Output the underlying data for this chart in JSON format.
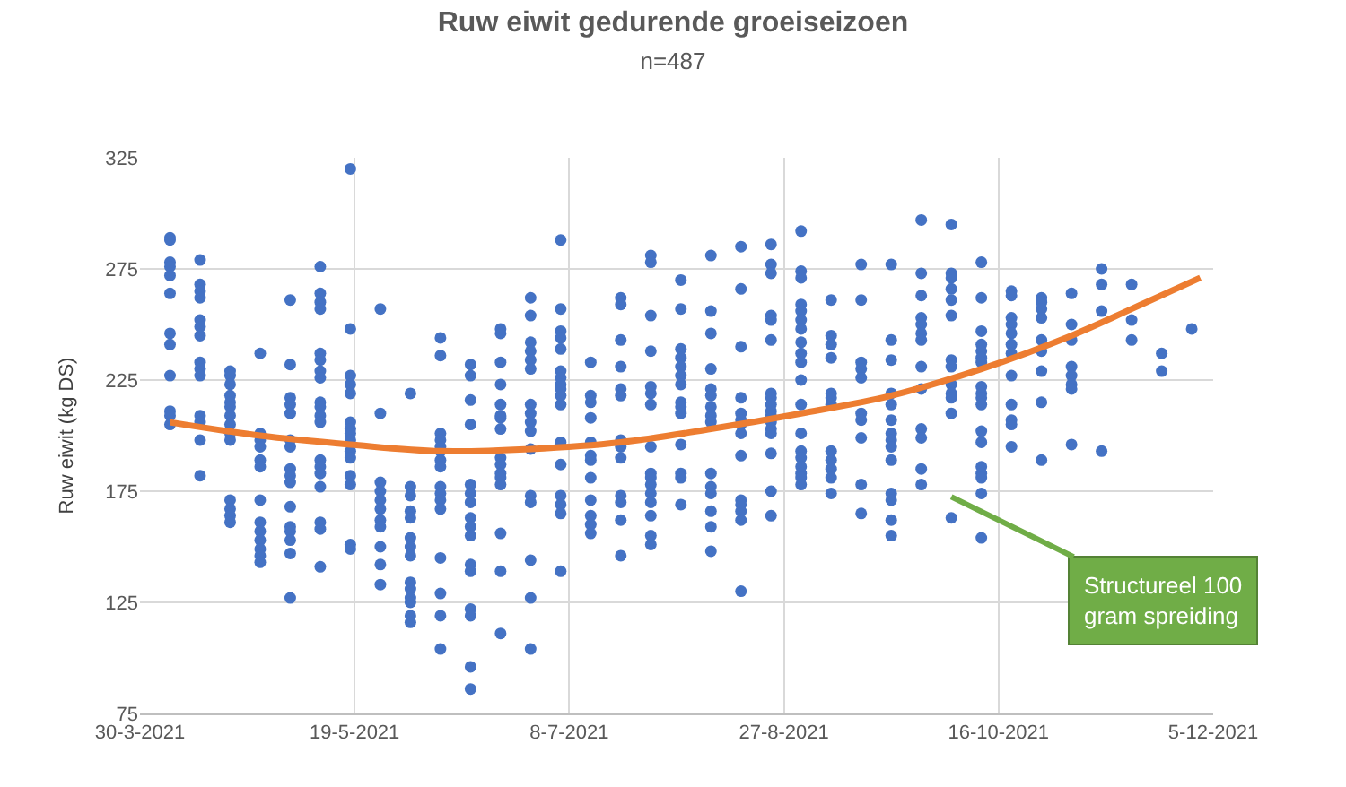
{
  "chart_data": {
    "type": "scatter",
    "title": "Ruw eiwit gedurende groeiseizoen",
    "subtitle": "n=487",
    "ylabel": "Ruw eiwit (kg DS)",
    "xlim": [
      "2021-03-30",
      "2021-12-05"
    ],
    "xticks": [
      {
        "value": "2021-03-30",
        "label": "30-3-2021"
      },
      {
        "value": "2021-05-19",
        "label": "19-5-2021"
      },
      {
        "value": "2021-07-08",
        "label": "8-7-2021"
      },
      {
        "value": "2021-08-27",
        "label": "27-8-2021"
      },
      {
        "value": "2021-10-16",
        "label": "16-10-2021"
      },
      {
        "value": "2021-12-05",
        "label": "5-12-2021"
      }
    ],
    "ylim": [
      75,
      325
    ],
    "yticks": [
      75,
      125,
      175,
      225,
      275,
      325
    ],
    "grid": true,
    "marker": "circle",
    "series": [
      {
        "color": "#4472c4",
        "x": [
          "2021-04-06",
          "2021-04-06",
          "2021-04-06",
          "2021-04-06",
          "2021-04-06",
          "2021-04-06",
          "2021-04-06",
          "2021-04-06",
          "2021-04-06",
          "2021-04-06",
          "2021-04-06",
          "2021-04-06",
          "2021-04-13",
          "2021-04-13",
          "2021-04-13",
          "2021-04-13",
          "2021-04-13",
          "2021-04-13",
          "2021-04-13",
          "2021-04-13",
          "2021-04-13",
          "2021-04-13",
          "2021-04-13",
          "2021-04-13",
          "2021-04-13",
          "2021-04-13",
          "2021-04-20",
          "2021-04-20",
          "2021-04-20",
          "2021-04-20",
          "2021-04-20",
          "2021-04-20",
          "2021-04-20",
          "2021-04-20",
          "2021-04-20",
          "2021-04-20",
          "2021-04-20",
          "2021-04-20",
          "2021-04-20",
          "2021-04-20",
          "2021-04-27",
          "2021-04-27",
          "2021-04-27",
          "2021-04-27",
          "2021-04-27",
          "2021-04-27",
          "2021-04-27",
          "2021-04-27",
          "2021-04-27",
          "2021-04-27",
          "2021-04-27",
          "2021-04-27",
          "2021-04-27",
          "2021-05-04",
          "2021-05-04",
          "2021-05-04",
          "2021-05-04",
          "2021-05-04",
          "2021-05-04",
          "2021-05-04",
          "2021-05-04",
          "2021-05-04",
          "2021-05-04",
          "2021-05-04",
          "2021-05-04",
          "2021-05-04",
          "2021-05-04",
          "2021-05-04",
          "2021-05-04",
          "2021-05-11",
          "2021-05-11",
          "2021-05-11",
          "2021-05-11",
          "2021-05-11",
          "2021-05-11",
          "2021-05-11",
          "2021-05-11",
          "2021-05-11",
          "2021-05-11",
          "2021-05-11",
          "2021-05-11",
          "2021-05-11",
          "2021-05-11",
          "2021-05-11",
          "2021-05-11",
          "2021-05-11",
          "2021-05-11",
          "2021-05-11",
          "2021-05-18",
          "2021-05-18",
          "2021-05-18",
          "2021-05-18",
          "2021-05-18",
          "2021-05-18",
          "2021-05-18",
          "2021-05-18",
          "2021-05-18",
          "2021-05-18",
          "2021-05-18",
          "2021-05-18",
          "2021-05-18",
          "2021-05-18",
          "2021-05-18",
          "2021-05-25",
          "2021-05-25",
          "2021-05-25",
          "2021-05-25",
          "2021-05-25",
          "2021-05-25",
          "2021-05-25",
          "2021-05-25",
          "2021-05-25",
          "2021-05-25",
          "2021-05-25",
          "2021-06-01",
          "2021-06-01",
          "2021-06-01",
          "2021-06-01",
          "2021-06-01",
          "2021-06-01",
          "2021-06-01",
          "2021-06-01",
          "2021-06-01",
          "2021-06-01",
          "2021-06-01",
          "2021-06-01",
          "2021-06-01",
          "2021-06-01",
          "2021-06-08",
          "2021-06-08",
          "2021-06-08",
          "2021-06-08",
          "2021-06-08",
          "2021-06-08",
          "2021-06-08",
          "2021-06-08",
          "2021-06-08",
          "2021-06-08",
          "2021-06-08",
          "2021-06-08",
          "2021-06-08",
          "2021-06-08",
          "2021-06-08",
          "2021-06-08",
          "2021-06-15",
          "2021-06-15",
          "2021-06-15",
          "2021-06-15",
          "2021-06-15",
          "2021-06-15",
          "2021-06-15",
          "2021-06-15",
          "2021-06-15",
          "2021-06-15",
          "2021-06-15",
          "2021-06-15",
          "2021-06-15",
          "2021-06-15",
          "2021-06-15",
          "2021-06-15",
          "2021-06-22",
          "2021-06-22",
          "2021-06-22",
          "2021-06-22",
          "2021-06-22",
          "2021-06-22",
          "2021-06-22",
          "2021-06-22",
          "2021-06-22",
          "2021-06-22",
          "2021-06-22",
          "2021-06-22",
          "2021-06-22",
          "2021-06-22",
          "2021-06-22",
          "2021-06-22",
          "2021-06-29",
          "2021-06-29",
          "2021-06-29",
          "2021-06-29",
          "2021-06-29",
          "2021-06-29",
          "2021-06-29",
          "2021-06-29",
          "2021-06-29",
          "2021-06-29",
          "2021-06-29",
          "2021-06-29",
          "2021-06-29",
          "2021-06-29",
          "2021-06-29",
          "2021-06-29",
          "2021-07-06",
          "2021-07-06",
          "2021-07-06",
          "2021-07-06",
          "2021-07-06",
          "2021-07-06",
          "2021-07-06",
          "2021-07-06",
          "2021-07-06",
          "2021-07-06",
          "2021-07-06",
          "2021-07-06",
          "2021-07-06",
          "2021-07-06",
          "2021-07-06",
          "2021-07-06",
          "2021-07-06",
          "2021-07-13",
          "2021-07-13",
          "2021-07-13",
          "2021-07-13",
          "2021-07-13",
          "2021-07-13",
          "2021-07-13",
          "2021-07-13",
          "2021-07-13",
          "2021-07-13",
          "2021-07-13",
          "2021-07-13",
          "2021-07-20",
          "2021-07-20",
          "2021-07-20",
          "2021-07-20",
          "2021-07-20",
          "2021-07-20",
          "2021-07-20",
          "2021-07-20",
          "2021-07-20",
          "2021-07-20",
          "2021-07-20",
          "2021-07-20",
          "2021-07-20",
          "2021-07-27",
          "2021-07-27",
          "2021-07-27",
          "2021-07-27",
          "2021-07-27",
          "2021-07-27",
          "2021-07-27",
          "2021-07-27",
          "2021-07-27",
          "2021-07-27",
          "2021-07-27",
          "2021-07-27",
          "2021-07-27",
          "2021-07-27",
          "2021-07-27",
          "2021-07-27",
          "2021-08-03",
          "2021-08-03",
          "2021-08-03",
          "2021-08-03",
          "2021-08-03",
          "2021-08-03",
          "2021-08-03",
          "2021-08-03",
          "2021-08-03",
          "2021-08-03",
          "2021-08-03",
          "2021-08-03",
          "2021-08-03",
          "2021-08-03",
          "2021-08-10",
          "2021-08-10",
          "2021-08-10",
          "2021-08-10",
          "2021-08-10",
          "2021-08-10",
          "2021-08-10",
          "2021-08-10",
          "2021-08-10",
          "2021-08-10",
          "2021-08-10",
          "2021-08-10",
          "2021-08-10",
          "2021-08-10",
          "2021-08-10",
          "2021-08-17",
          "2021-08-17",
          "2021-08-17",
          "2021-08-17",
          "2021-08-17",
          "2021-08-17",
          "2021-08-17",
          "2021-08-17",
          "2021-08-17",
          "2021-08-17",
          "2021-08-17",
          "2021-08-17",
          "2021-08-17",
          "2021-08-17",
          "2021-08-24",
          "2021-08-24",
          "2021-08-24",
          "2021-08-24",
          "2021-08-24",
          "2021-08-24",
          "2021-08-24",
          "2021-08-24",
          "2021-08-24",
          "2021-08-24",
          "2021-08-24",
          "2021-08-24",
          "2021-08-24",
          "2021-08-24",
          "2021-08-24",
          "2021-08-24",
          "2021-08-24",
          "2021-08-31",
          "2021-08-31",
          "2021-08-31",
          "2021-08-31",
          "2021-08-31",
          "2021-08-31",
          "2021-08-31",
          "2021-08-31",
          "2021-08-31",
          "2021-08-31",
          "2021-08-31",
          "2021-08-31",
          "2021-08-31",
          "2021-08-31",
          "2021-08-31",
          "2021-08-31",
          "2021-08-31",
          "2021-08-31",
          "2021-08-31",
          "2021-09-07",
          "2021-09-07",
          "2021-09-07",
          "2021-09-07",
          "2021-09-07",
          "2021-09-07",
          "2021-09-07",
          "2021-09-07",
          "2021-09-07",
          "2021-09-07",
          "2021-09-07",
          "2021-09-07",
          "2021-09-14",
          "2021-09-14",
          "2021-09-14",
          "2021-09-14",
          "2021-09-14",
          "2021-09-14",
          "2021-09-14",
          "2021-09-14",
          "2021-09-14",
          "2021-09-14",
          "2021-09-21",
          "2021-09-21",
          "2021-09-21",
          "2021-09-21",
          "2021-09-21",
          "2021-09-21",
          "2021-09-21",
          "2021-09-21",
          "2021-09-21",
          "2021-09-21",
          "2021-09-21",
          "2021-09-21",
          "2021-09-21",
          "2021-09-21",
          "2021-09-28",
          "2021-09-28",
          "2021-09-28",
          "2021-09-28",
          "2021-09-28",
          "2021-09-28",
          "2021-09-28",
          "2021-09-28",
          "2021-09-28",
          "2021-09-28",
          "2021-09-28",
          "2021-09-28",
          "2021-09-28",
          "2021-10-05",
          "2021-10-05",
          "2021-10-05",
          "2021-10-05",
          "2021-10-05",
          "2021-10-05",
          "2021-10-05",
          "2021-10-05",
          "2021-10-05",
          "2021-10-05",
          "2021-10-05",
          "2021-10-05",
          "2021-10-05",
          "2021-10-12",
          "2021-10-12",
          "2021-10-12",
          "2021-10-12",
          "2021-10-12",
          "2021-10-12",
          "2021-10-12",
          "2021-10-12",
          "2021-10-12",
          "2021-10-12",
          "2021-10-12",
          "2021-10-12",
          "2021-10-12",
          "2021-10-12",
          "2021-10-12",
          "2021-10-12",
          "2021-10-12",
          "2021-10-12",
          "2021-10-19",
          "2021-10-19",
          "2021-10-19",
          "2021-10-19",
          "2021-10-19",
          "2021-10-19",
          "2021-10-19",
          "2021-10-19",
          "2021-10-19",
          "2021-10-19",
          "2021-10-19",
          "2021-10-19",
          "2021-10-26",
          "2021-10-26",
          "2021-10-26",
          "2021-10-26",
          "2021-10-26",
          "2021-10-26",
          "2021-10-26",
          "2021-10-26",
          "2021-10-26",
          "2021-11-02",
          "2021-11-02",
          "2021-11-02",
          "2021-11-02",
          "2021-11-02",
          "2021-11-02",
          "2021-11-02",
          "2021-11-02",
          "2021-11-09",
          "2021-11-09",
          "2021-11-09",
          "2021-11-09",
          "2021-11-16",
          "2021-11-16",
          "2021-11-16",
          "2021-11-23",
          "2021-11-23",
          "2021-11-30"
        ],
        "values": [
          289,
          288,
          278,
          276,
          272,
          264,
          246,
          241,
          227,
          211,
          209,
          205,
          279,
          268,
          265,
          262,
          252,
          249,
          245,
          233,
          230,
          227,
          209,
          206,
          198,
          182,
          229,
          227,
          223,
          218,
          215,
          213,
          209,
          205,
          201,
          198,
          171,
          167,
          164,
          161,
          237,
          201,
          198,
          195,
          189,
          186,
          171,
          161,
          157,
          153,
          149,
          146,
          143,
          261,
          232,
          217,
          214,
          210,
          198,
          195,
          185,
          182,
          179,
          168,
          159,
          157,
          153,
          147,
          127,
          276,
          264,
          260,
          257,
          237,
          234,
          229,
          226,
          215,
          213,
          209,
          206,
          189,
          186,
          183,
          177,
          161,
          158,
          141,
          320,
          248,
          227,
          223,
          219,
          206,
          203,
          201,
          198,
          193,
          190,
          182,
          178,
          151,
          149,
          257,
          210,
          179,
          175,
          171,
          167,
          162,
          159,
          150,
          142,
          133,
          219,
          177,
          173,
          166,
          163,
          154,
          150,
          146,
          134,
          131,
          127,
          125,
          119,
          116,
          244,
          236,
          201,
          198,
          195,
          193,
          189,
          186,
          177,
          174,
          171,
          167,
          145,
          129,
          119,
          104,
          232,
          227,
          216,
          205,
          178,
          174,
          170,
          163,
          159,
          155,
          142,
          139,
          122,
          119,
          96,
          86,
          248,
          246,
          233,
          223,
          214,
          209,
          208,
          203,
          190,
          187,
          183,
          181,
          178,
          156,
          139,
          111,
          262,
          254,
          242,
          238,
          234,
          230,
          214,
          210,
          206,
          202,
          194,
          173,
          170,
          144,
          127,
          104,
          288,
          257,
          247,
          244,
          239,
          229,
          226,
          223,
          221,
          218,
          214,
          197,
          187,
          173,
          169,
          165,
          139,
          233,
          218,
          215,
          208,
          197,
          191,
          189,
          181,
          171,
          164,
          160,
          156,
          262,
          259,
          243,
          231,
          221,
          218,
          198,
          195,
          190,
          173,
          170,
          162,
          146,
          281,
          278,
          254,
          238,
          222,
          219,
          214,
          195,
          183,
          181,
          178,
          174,
          170,
          164,
          155,
          151,
          270,
          257,
          239,
          235,
          231,
          227,
          223,
          215,
          213,
          210,
          196,
          183,
          181,
          169,
          281,
          256,
          246,
          230,
          221,
          218,
          213,
          209,
          206,
          183,
          177,
          174,
          166,
          159,
          148,
          285,
          266,
          240,
          217,
          210,
          207,
          205,
          201,
          191,
          171,
          169,
          166,
          162,
          130,
          286,
          277,
          273,
          254,
          252,
          243,
          219,
          217,
          214,
          211,
          209,
          206,
          203,
          201,
          192,
          175,
          164,
          292,
          274,
          271,
          259,
          256,
          252,
          248,
          242,
          237,
          233,
          225,
          214,
          201,
          193,
          190,
          186,
          183,
          181,
          178,
          261,
          245,
          241,
          235,
          219,
          217,
          214,
          193,
          189,
          185,
          181,
          174,
          277,
          261,
          233,
          230,
          226,
          210,
          207,
          199,
          178,
          165,
          277,
          243,
          234,
          219,
          214,
          207,
          201,
          198,
          195,
          189,
          174,
          171,
          162,
          155,
          297,
          273,
          263,
          253,
          250,
          246,
          243,
          231,
          221,
          203,
          199,
          185,
          178,
          295,
          273,
          271,
          266,
          261,
          254,
          234,
          231,
          223,
          219,
          217,
          210,
          163,
          278,
          262,
          247,
          241,
          238,
          235,
          233,
          222,
          219,
          217,
          214,
          202,
          197,
          186,
          183,
          181,
          174,
          154,
          265,
          263,
          253,
          250,
          246,
          241,
          237,
          227,
          214,
          207,
          205,
          195,
          262,
          260,
          257,
          253,
          243,
          238,
          229,
          215,
          189,
          264,
          250,
          243,
          231,
          227,
          223,
          221,
          196,
          275,
          268,
          256,
          193,
          268,
          252,
          243,
          237,
          229,
          248
        ]
      },
      {
        "type": "line",
        "color": "#ed7d31",
        "marker": "none",
        "x": [
          "2021-04-06",
          "2021-04-27",
          "2021-05-18",
          "2021-06-08",
          "2021-06-29",
          "2021-07-20",
          "2021-08-10",
          "2021-08-31",
          "2021-09-21",
          "2021-10-12",
          "2021-11-02",
          "2021-11-16",
          "2021-12-02"
        ],
        "values": [
          206,
          200,
          196,
          193,
          194,
          197,
          203,
          210,
          218,
          230,
          245,
          257,
          271
        ]
      }
    ],
    "annotations": [
      "Structureel 100\ngram spreiding"
    ]
  }
}
